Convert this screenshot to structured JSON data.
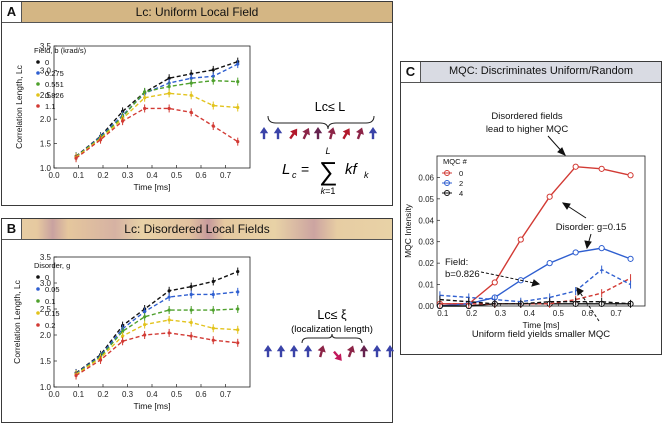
{
  "panels": {
    "a": {
      "letter": "A",
      "title": "Lc: Uniform Local Field",
      "relation": "Lc≤ L",
      "formula": "Lc = Σ k f_k (k=1..L)"
    },
    "b": {
      "letter": "B",
      "title": "Lc: Disordered Local Fields",
      "relation": "Lc≤ ξ",
      "relation_note": "(localization length)"
    },
    "c": {
      "letter": "C",
      "title": "MQC: Discriminates Uniform/Random",
      "annotations": {
        "disordered_line1": "Disordered fields",
        "disordered_line2": "lead to higher MQC",
        "disorder_value": "Disorder: g=0.15",
        "field_label": "Field:",
        "field_value": "b=0.826",
        "uniform_note": "Uniform field yields smaller MQC"
      }
    }
  },
  "chart_data": [
    {
      "id": "a",
      "type": "line",
      "xlabel": "Time [ms]",
      "ylabel": "Correlation Length, Lc",
      "xlim": [
        0.0,
        0.8
      ],
      "ylim": [
        1.0,
        3.5
      ],
      "xticks": [
        "0.0",
        "0.1",
        "0.2",
        "0.3",
        "0.4",
        "0.5",
        "0.6",
        "0.7"
      ],
      "yticks": [
        "1.0",
        "1.5",
        "2.0",
        "2.5",
        "3.0",
        "3.5"
      ],
      "legend_title": "Field, b (krad/s)",
      "x": [
        0.09,
        0.19,
        0.28,
        0.37,
        0.47,
        0.56,
        0.65,
        0.75
      ],
      "series": [
        {
          "name": "0",
          "color": "#111111",
          "values": [
            1.24,
            1.65,
            2.16,
            2.55,
            2.84,
            2.93,
            3.01,
            3.18
          ]
        },
        {
          "name": "0.275",
          "color": "#2f5fd0",
          "values": [
            1.23,
            1.64,
            2.08,
            2.53,
            2.74,
            2.84,
            2.88,
            3.13
          ]
        },
        {
          "name": "0.551",
          "color": "#4ea02c",
          "values": [
            1.23,
            1.62,
            2.05,
            2.56,
            2.67,
            2.74,
            2.79,
            2.77
          ]
        },
        {
          "name": "0.826",
          "color": "#e2c31c",
          "values": [
            1.22,
            1.6,
            2.01,
            2.44,
            2.53,
            2.49,
            2.28,
            2.24
          ]
        },
        {
          "name": "1.1",
          "color": "#d23a34",
          "values": [
            1.2,
            1.58,
            1.96,
            2.22,
            2.22,
            2.14,
            1.86,
            1.54
          ]
        }
      ]
    },
    {
      "id": "b",
      "type": "line",
      "xlabel": "Time [ms]",
      "ylabel": "Correlation Length, Lc",
      "xlim": [
        0.0,
        0.8
      ],
      "ylim": [
        1.0,
        3.5
      ],
      "xticks": [
        "0.0",
        "0.1",
        "0.2",
        "0.3",
        "0.4",
        "0.5",
        "0.6",
        "0.7"
      ],
      "yticks": [
        "1.0",
        "1.5",
        "2.0",
        "2.5",
        "3.0",
        "3.5"
      ],
      "legend_title": "Disorder, g",
      "x": [
        0.09,
        0.19,
        0.28,
        0.37,
        0.47,
        0.56,
        0.65,
        0.75
      ],
      "series": [
        {
          "name": "0",
          "color": "#111111",
          "values": [
            1.27,
            1.62,
            2.18,
            2.5,
            2.85,
            2.93,
            3.03,
            3.22
          ]
        },
        {
          "name": "0.05",
          "color": "#2f5fd0",
          "values": [
            1.26,
            1.6,
            2.12,
            2.45,
            2.73,
            2.78,
            2.78,
            2.83
          ]
        },
        {
          "name": "0.1",
          "color": "#4ea02c",
          "values": [
            1.25,
            1.58,
            2.07,
            2.35,
            2.48,
            2.48,
            2.48,
            2.5
          ]
        },
        {
          "name": "0.15",
          "color": "#e2c31c",
          "values": [
            1.24,
            1.56,
            1.98,
            2.2,
            2.29,
            2.24,
            2.13,
            2.1
          ]
        },
        {
          "name": "0.2",
          "color": "#d23a34",
          "values": [
            1.22,
            1.52,
            1.88,
            2.0,
            2.04,
            1.98,
            1.9,
            1.85
          ]
        }
      ]
    },
    {
      "id": "c",
      "type": "line",
      "xlabel": "Time [ms]",
      "ylabel": "MQC Intensity",
      "xlim": [
        0.08,
        0.8
      ],
      "ylim": [
        0.0,
        0.07
      ],
      "xticks": [
        "0.1",
        "0.2",
        "0.3",
        "0.4",
        "0.5",
        "0.6",
        "0.7"
      ],
      "yticks": [
        "0.00",
        "0.01",
        "0.02",
        "0.03",
        "0.04",
        "0.05",
        "0.06"
      ],
      "legend_title": "MQC #",
      "x": [
        0.09,
        0.19,
        0.28,
        0.37,
        0.47,
        0.56,
        0.65,
        0.75
      ],
      "series": [
        {
          "name": "0",
          "color": "#d23a34",
          "style": "solid",
          "values": [
            0.001,
            0.001,
            0.011,
            0.031,
            0.051,
            0.065,
            0.064,
            0.061
          ]
        },
        {
          "name": "2",
          "color": "#2f5fd0",
          "style": "solid",
          "values": [
            0.0,
            0.001,
            0.004,
            0.012,
            0.02,
            0.025,
            0.027,
            0.022
          ]
        },
        {
          "name": "4",
          "color": "#111111",
          "style": "solid",
          "values": [
            0.0,
            0.0,
            0.001,
            0.001,
            0.001,
            0.001,
            0.001,
            0.001
          ]
        },
        {
          "name": "0 (uniform field)",
          "color": "#d23a34",
          "style": "dashed",
          "values": [
            0.001,
            0.001,
            0.001,
            0.001,
            0.001,
            0.003,
            0.006,
            0.013
          ]
        },
        {
          "name": "2 (uniform field)",
          "color": "#2f5fd0",
          "style": "dashed",
          "values": [
            0.005,
            0.004,
            0.003,
            0.002,
            0.004,
            0.007,
            0.017,
            0.01
          ]
        },
        {
          "name": "4 (uniform field)",
          "color": "#111111",
          "style": "dashed",
          "values": [
            0.003,
            0.002,
            0.001,
            0.001,
            0.002,
            0.002,
            0.002,
            0.001
          ]
        }
      ]
    }
  ]
}
